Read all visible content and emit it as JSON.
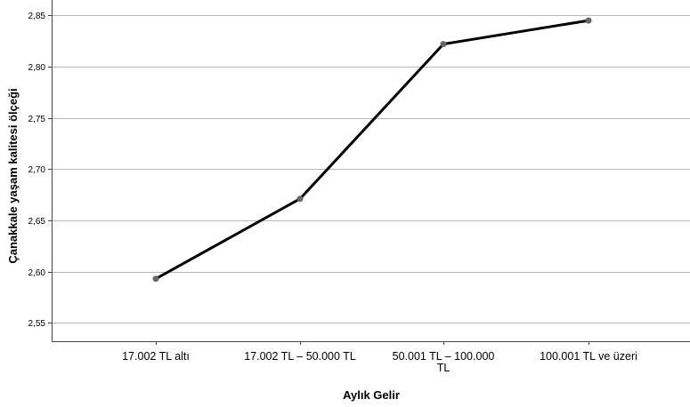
{
  "chart_data": {
    "type": "line",
    "title": "",
    "xlabel": "Aylık Gelir",
    "ylabel": "Çanakkale yaşam kalitesi ölçeği",
    "categories": [
      [
        "17.002 TL altı"
      ],
      [
        "17.002 TL – 50.000 TL"
      ],
      [
        "50.001 TL – 100.000",
        "TL"
      ],
      [
        "100.001 TL ve üzeri"
      ]
    ],
    "series": [
      {
        "values": [
          2.593,
          2.671,
          2.822,
          2.845
        ]
      }
    ],
    "ylim": [
      2.532,
      2.865
    ],
    "yticks": [
      2.55,
      2.6,
      2.65,
      2.7,
      2.75,
      2.8,
      2.85
    ],
    "ytick_labels": [
      "2,55",
      "2,60",
      "2,65",
      "2,70",
      "2,75",
      "2,80",
      "2,85"
    ],
    "grid": true,
    "legend": "none",
    "colors": {
      "line": "#000000",
      "marker": "#666666",
      "grid": "#b8b8b8",
      "axis": "#444444"
    }
  }
}
